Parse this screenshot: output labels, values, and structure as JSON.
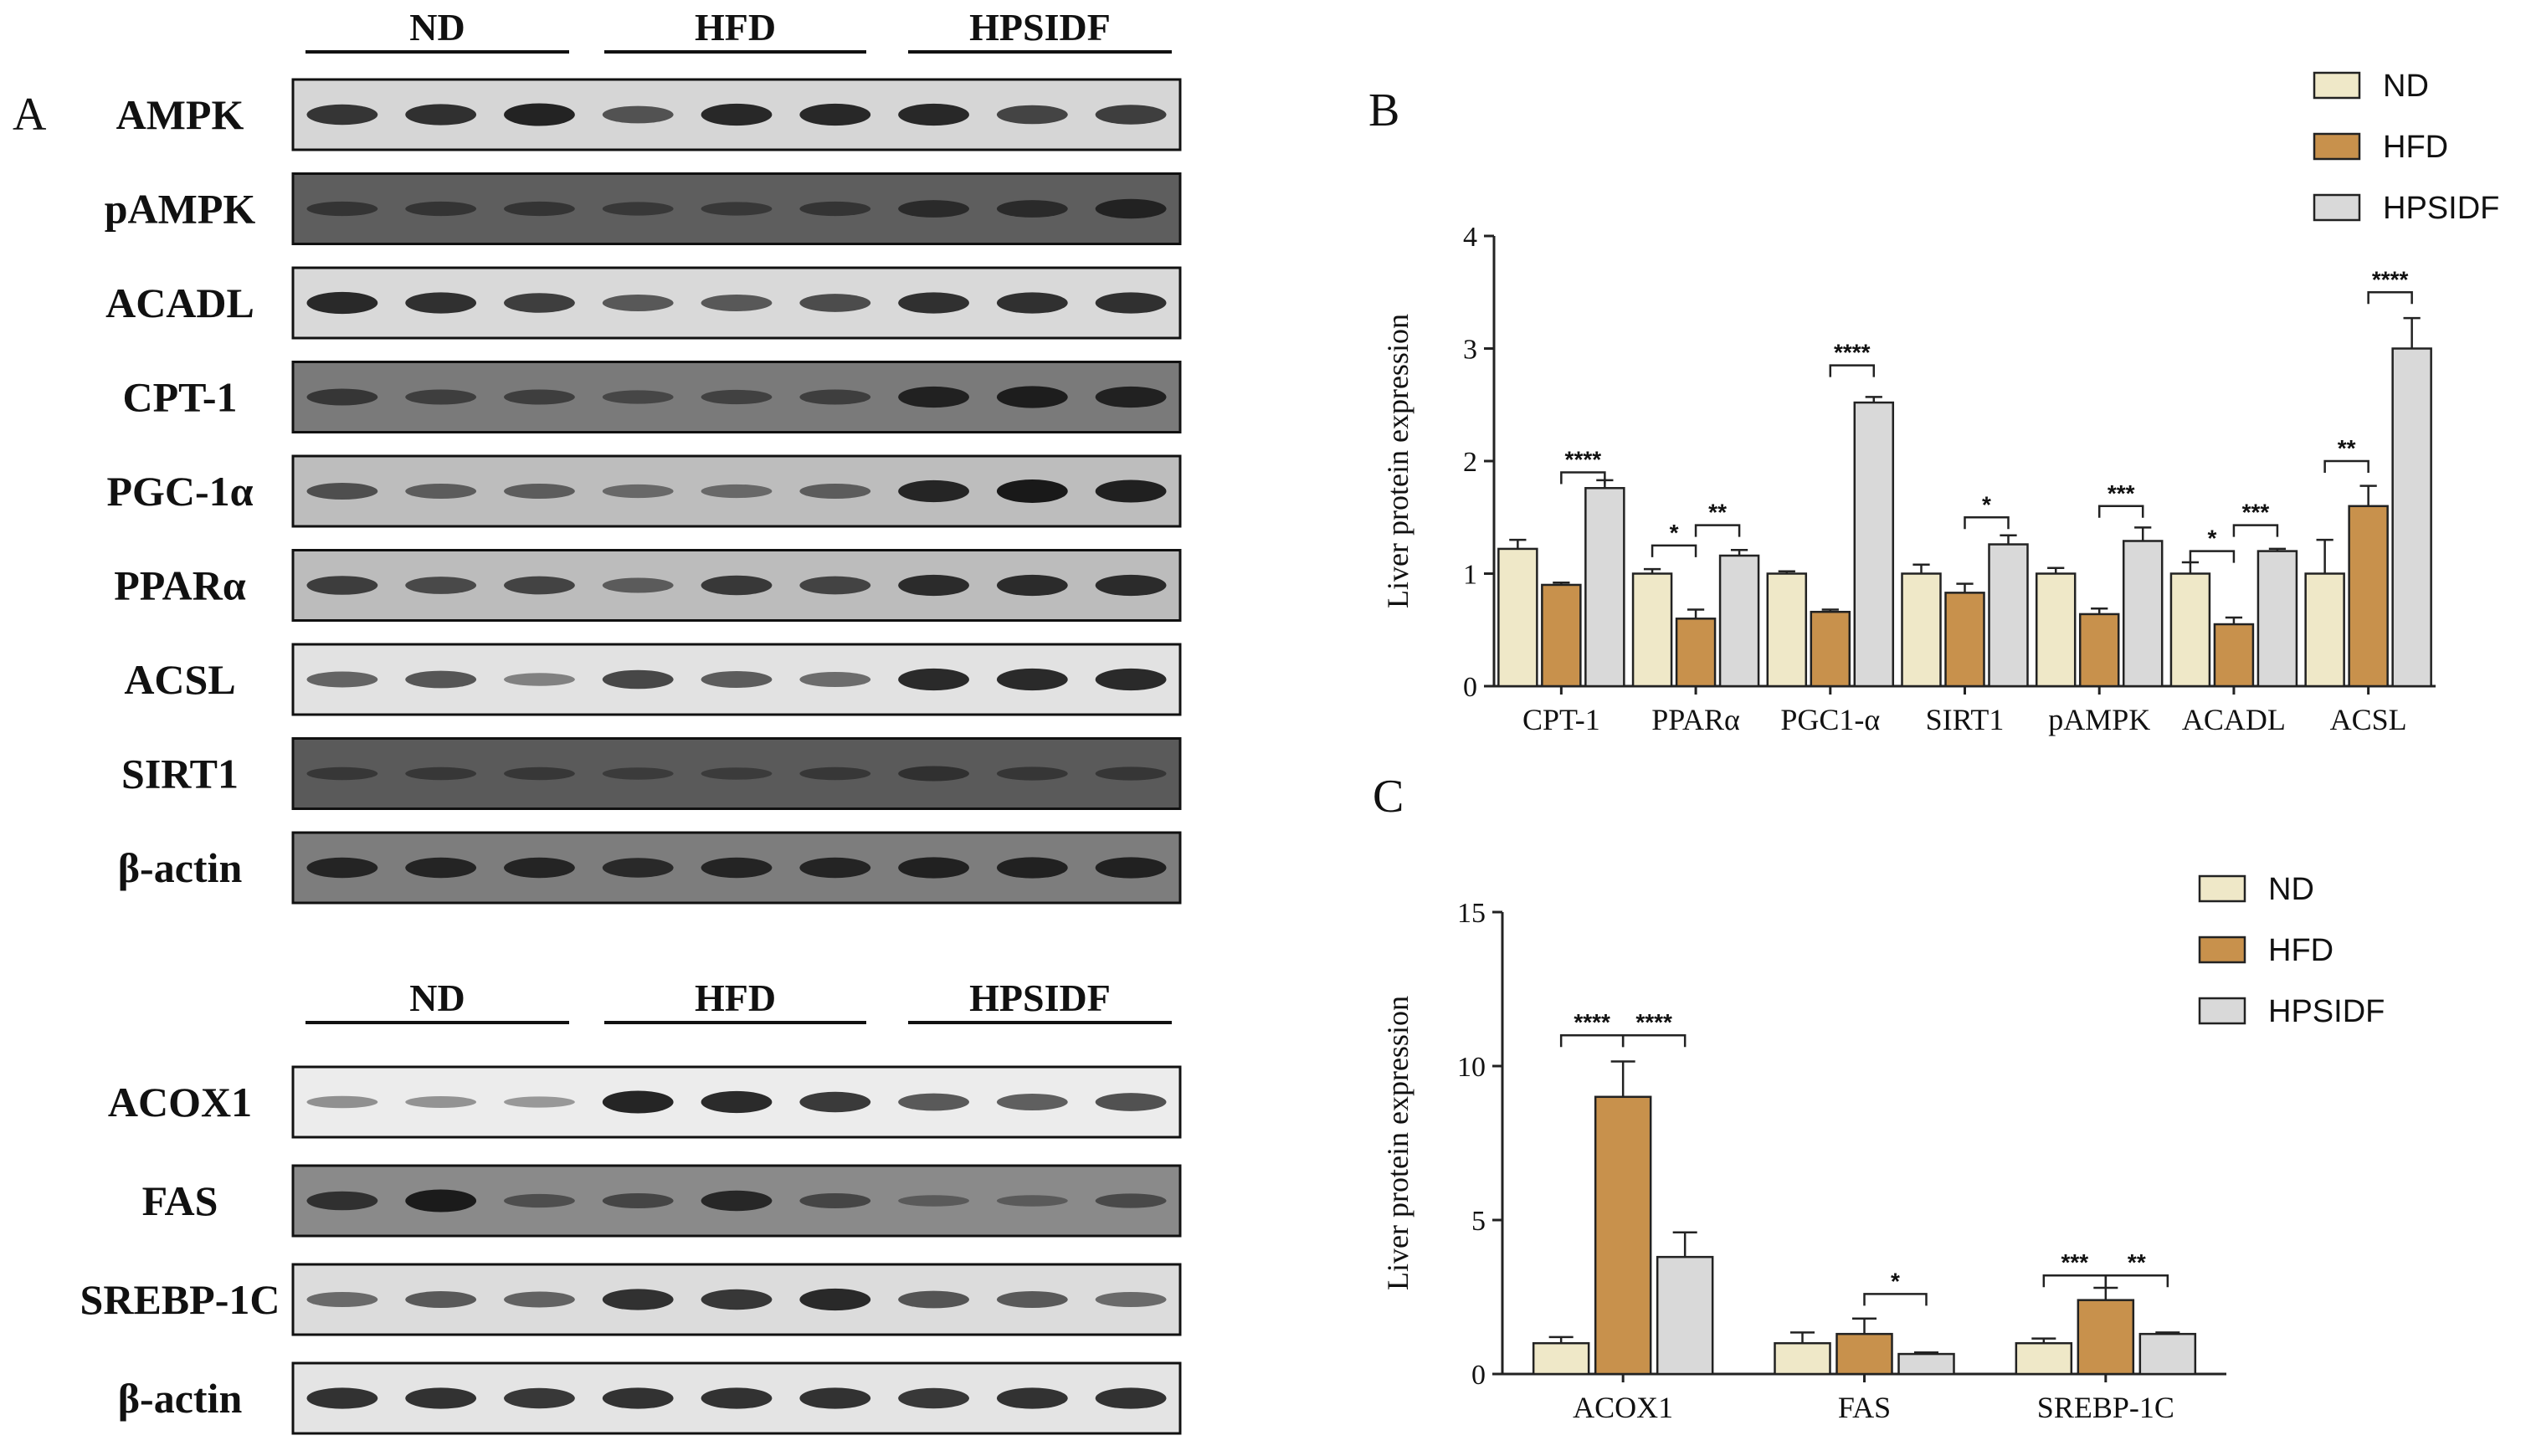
{
  "panel_labels": {
    "a": "A",
    "b": "B",
    "c": "C"
  },
  "western_blot": {
    "groups": [
      "ND",
      "HFD",
      "HPSIDF"
    ],
    "top_rows": [
      {
        "label": "AMPK",
        "bg": "#d6d6d6",
        "lanes": [
          0.8,
          0.85,
          0.95,
          0.6,
          0.9,
          0.9,
          0.9,
          0.7,
          0.75
        ]
      },
      {
        "label": "pAMPK",
        "bg": "#5e5e5e",
        "lanes": [
          0.4,
          0.4,
          0.4,
          0.35,
          0.35,
          0.4,
          0.6,
          0.6,
          0.75
        ]
      },
      {
        "label": "ACADL",
        "bg": "#d9d9d9",
        "lanes": [
          0.9,
          0.85,
          0.75,
          0.55,
          0.55,
          0.65,
          0.85,
          0.85,
          0.85
        ]
      },
      {
        "label": "CPT-1",
        "bg": "#7a7a7a",
        "lanes": [
          0.55,
          0.45,
          0.45,
          0.35,
          0.4,
          0.45,
          0.85,
          0.9,
          0.85
        ]
      },
      {
        "label": "PGC-1α",
        "bg": "#bdbdbd",
        "lanes": [
          0.55,
          0.45,
          0.45,
          0.35,
          0.35,
          0.45,
          0.9,
          1.0,
          0.95
        ]
      },
      {
        "label": "PPARα",
        "bg": "#bcbcbc",
        "lanes": [
          0.7,
          0.6,
          0.65,
          0.45,
          0.75,
          0.65,
          0.85,
          0.85,
          0.85
        ]
      },
      {
        "label": "ACSL",
        "bg": "#e2e2e2",
        "lanes": [
          0.5,
          0.6,
          0.3,
          0.7,
          0.55,
          0.45,
          0.9,
          0.9,
          0.9
        ]
      },
      {
        "label": "SIRT1",
        "bg": "#5a5a5a",
        "lanes": [
          0.3,
          0.3,
          0.3,
          0.25,
          0.25,
          0.3,
          0.45,
          0.35,
          0.35
        ]
      },
      {
        "label": "β-actin",
        "bg": "#7d7d7d",
        "lanes": [
          0.8,
          0.8,
          0.8,
          0.75,
          0.8,
          0.8,
          0.85,
          0.85,
          0.85
        ]
      }
    ],
    "bottom_rows": [
      {
        "label": "ACOX1",
        "bg": "#ececec",
        "lanes": [
          0.25,
          0.22,
          0.18,
          0.95,
          0.9,
          0.8,
          0.6,
          0.55,
          0.65
        ]
      },
      {
        "label": "FAS",
        "bg": "#8a8a8a",
        "lanes": [
          0.7,
          0.95,
          0.35,
          0.45,
          0.8,
          0.45,
          0.2,
          0.2,
          0.4
        ]
      },
      {
        "label": "SREBP-1C",
        "bg": "#dcdcdc",
        "lanes": [
          0.45,
          0.55,
          0.5,
          0.85,
          0.8,
          0.9,
          0.6,
          0.55,
          0.45
        ]
      },
      {
        "label": "β-actin",
        "bg": "#e4e4e4",
        "lanes": [
          0.85,
          0.85,
          0.8,
          0.85,
          0.85,
          0.85,
          0.8,
          0.85,
          0.85
        ]
      }
    ]
  },
  "colors": {
    "ND": "#efe8c8",
    "HFD": "#c8914c",
    "HPSIDF": "#d9d9d9",
    "stroke": "#222222"
  },
  "chart_data": [
    {
      "type": "bar",
      "panel": "B",
      "ylabel": "Liver protein expression",
      "ylim": [
        0,
        4
      ],
      "yticks": [
        0,
        1,
        2,
        3,
        4
      ],
      "categories": [
        "CPT-1",
        "PPARα",
        "PGC1-α",
        "SIRT1",
        "pAMPK",
        "ACADL",
        "ACSL"
      ],
      "series": [
        {
          "name": "ND",
          "values": [
            1.22,
            1.0,
            1.0,
            1.0,
            1.0,
            1.0,
            1.0
          ],
          "errors": [
            0.08,
            0.04,
            0.02,
            0.08,
            0.05,
            0.1,
            0.3
          ]
        },
        {
          "name": "HFD",
          "values": [
            0.9,
            0.6,
            0.66,
            0.83,
            0.64,
            0.55,
            1.6
          ],
          "errors": [
            0.02,
            0.08,
            0.02,
            0.08,
            0.05,
            0.06,
            0.18
          ]
        },
        {
          "name": "HPSIDF",
          "values": [
            1.76,
            1.16,
            2.52,
            1.26,
            1.29,
            1.2,
            3.0
          ],
          "errors": [
            0.07,
            0.05,
            0.05,
            0.08,
            0.12,
            0.02,
            0.27
          ]
        }
      ],
      "significance": [
        {
          "category": 0,
          "from": "HFD",
          "to": "HPSIDF",
          "label": "****",
          "y": 1.9
        },
        {
          "category": 1,
          "from": "ND",
          "to": "HFD",
          "label": "*",
          "y": 1.25
        },
        {
          "category": 1,
          "from": "HFD",
          "to": "HPSIDF",
          "label": "**",
          "y": 1.43
        },
        {
          "category": 2,
          "from": "HFD",
          "to": "HPSIDF",
          "label": "****",
          "y": 2.85
        },
        {
          "category": 3,
          "from": "HFD",
          "to": "HPSIDF",
          "label": "*",
          "y": 1.5
        },
        {
          "category": 4,
          "from": "HFD",
          "to": "HPSIDF",
          "label": "***",
          "y": 1.6
        },
        {
          "category": 5,
          "from": "ND",
          "to": "HFD",
          "label": "*",
          "y": 1.2
        },
        {
          "category": 5,
          "from": "HFD",
          "to": "HPSIDF",
          "label": "***",
          "y": 1.43
        },
        {
          "category": 6,
          "from": "ND",
          "to": "HFD",
          "label": "**",
          "y": 2.0
        },
        {
          "category": 6,
          "from": "HFD",
          "to": "HPSIDF",
          "label": "****",
          "y": 3.5
        }
      ],
      "legend": [
        "ND",
        "HFD",
        "HPSIDF"
      ],
      "legend_position": "top-right"
    },
    {
      "type": "bar",
      "panel": "C",
      "ylabel": "Liver protein expression",
      "ylim": [
        0,
        15
      ],
      "yticks": [
        0,
        5,
        10,
        15
      ],
      "categories": [
        "ACOX1",
        "FAS",
        "SREBP-1C"
      ],
      "series": [
        {
          "name": "ND",
          "values": [
            1.0,
            1.0,
            1.0
          ],
          "errors": [
            0.2,
            0.35,
            0.15
          ]
        },
        {
          "name": "HFD",
          "values": [
            9.0,
            1.3,
            2.4
          ],
          "errors": [
            1.15,
            0.5,
            0.4
          ]
        },
        {
          "name": "HPSIDF",
          "values": [
            3.8,
            0.65,
            1.3
          ],
          "errors": [
            0.8,
            0.05,
            0.05
          ]
        }
      ],
      "significance": [
        {
          "category": 0,
          "from": "ND",
          "to": "HFD",
          "label": "****",
          "y": 11.0
        },
        {
          "category": 0,
          "from": "HFD",
          "to": "HPSIDF",
          "label": "****",
          "y": 11.0
        },
        {
          "category": 1,
          "from": "HFD",
          "to": "HPSIDF",
          "label": "*",
          "y": 2.6
        },
        {
          "category": 2,
          "from": "ND",
          "to": "HFD",
          "label": "***",
          "y": 3.2
        },
        {
          "category": 2,
          "from": "HFD",
          "to": "HPSIDF",
          "label": "**",
          "y": 3.2
        }
      ],
      "legend": [
        "ND",
        "HFD",
        "HPSIDF"
      ],
      "legend_position": "top-right"
    }
  ]
}
